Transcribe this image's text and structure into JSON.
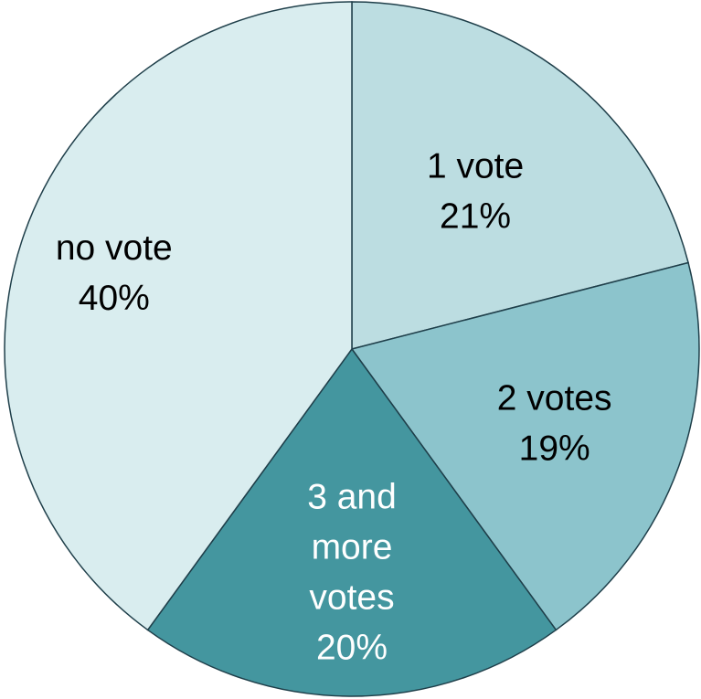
{
  "chart_data": {
    "type": "pie",
    "start_angle_deg": 0,
    "direction": "clockwise",
    "legend": "none",
    "slices": [
      {
        "label": "1 vote",
        "lines": [
          "1 vote"
        ],
        "percent_label": "21%",
        "value": 21,
        "color": "#bcdde1",
        "text_color": "#000000"
      },
      {
        "label": "2 votes",
        "lines": [
          "2 votes"
        ],
        "percent_label": "19%",
        "value": 19,
        "color": "#8cc4cc",
        "text_color": "#000000"
      },
      {
        "label": "3 and more votes",
        "lines": [
          "3 and",
          "more",
          "votes"
        ],
        "percent_label": "20%",
        "value": 20,
        "color": "#44969f",
        "text_color": "#ffffff"
      },
      {
        "label": "no vote",
        "lines": [
          "no vote"
        ],
        "percent_label": "40%",
        "value": 40,
        "color": "#d9edef",
        "text_color": "#000000"
      }
    ]
  }
}
